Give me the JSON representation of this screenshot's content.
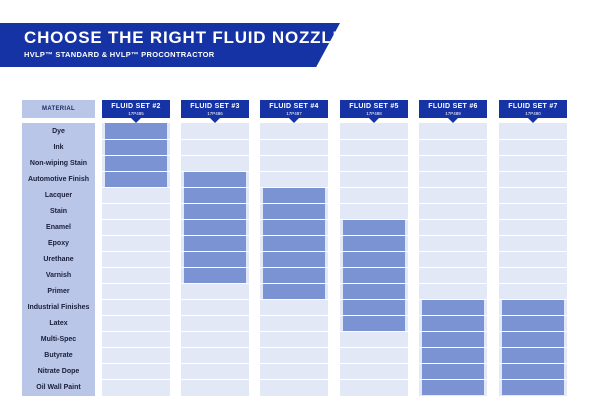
{
  "banner": {
    "title": "CHOOSE THE RIGHT FLUID NOZZLE",
    "subtitle": "HVLP™ STANDARD & HVLP™ PROCONTRACTOR",
    "color": "#1533a5"
  },
  "table": {
    "material_header": "MATERIAL",
    "materials": [
      "Dye",
      "Ink",
      "Non-wiping Stain",
      "Automotive Finish",
      "Lacquer",
      "Stain",
      "Enamel",
      "Epoxy",
      "Urethane",
      "Varnish",
      "Primer",
      "Industrial Finishes",
      "Latex",
      "Multi-Spec",
      "Butyrate",
      "Nitrate Dope",
      "Oil Wall Paint"
    ],
    "fluid_sets": [
      {
        "name": "FLUID SET #2",
        "part": "17P485",
        "covers": [
          "Dye",
          "Ink",
          "Non-wiping Stain",
          "Automotive Finish"
        ]
      },
      {
        "name": "FLUID SET #3",
        "part": "17P486",
        "covers": [
          "Automotive Finish",
          "Lacquer",
          "Stain",
          "Enamel",
          "Epoxy",
          "Urethane",
          "Varnish"
        ]
      },
      {
        "name": "FLUID SET #4",
        "part": "17P487",
        "covers": [
          "Lacquer",
          "Stain",
          "Enamel",
          "Epoxy",
          "Urethane",
          "Varnish",
          "Primer"
        ]
      },
      {
        "name": "FLUID SET #5",
        "part": "17P488",
        "covers": [
          "Enamel",
          "Epoxy",
          "Urethane",
          "Varnish",
          "Primer",
          "Industrial Finishes",
          "Latex"
        ]
      },
      {
        "name": "FLUID SET #6",
        "part": "17P489",
        "covers": [
          "Industrial Finishes",
          "Latex",
          "Multi-Spec",
          "Butyrate",
          "Nitrate Dope",
          "Oil Wall Paint"
        ]
      },
      {
        "name": "FLUID SET #7",
        "part": "17P490",
        "covers": [
          "Industrial Finishes",
          "Latex",
          "Multi-Spec",
          "Butyrate",
          "Nitrate Dope",
          "Oil Wall Paint"
        ]
      }
    ]
  },
  "colors": {
    "header_blue": "#1533a5",
    "fill_blue": "#7b93d3",
    "material_bg": "#b9c6e8",
    "column_bg": "#e3e8f6"
  }
}
